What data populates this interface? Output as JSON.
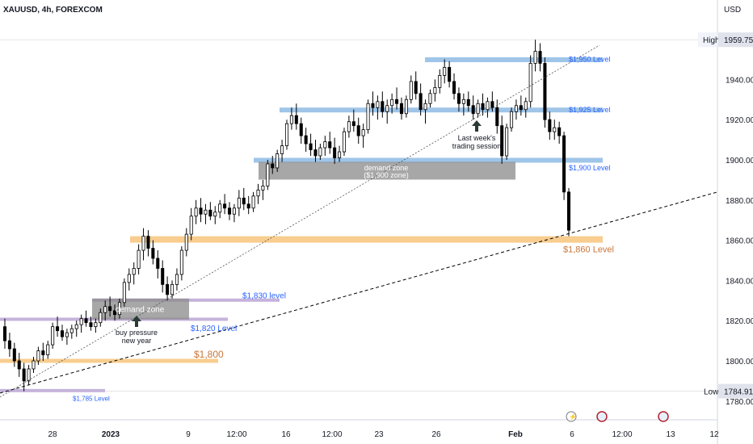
{
  "header": {
    "symbol_line": "XAUUSD, 4h, FOREXCOM",
    "currency": "USD"
  },
  "chart_data": {
    "type": "candlestick",
    "title": "XAUUSD, 4h, FOREXCOM",
    "ylabel": "USD",
    "ylim": [
      1772,
      1972
    ],
    "y_ticks": [
      1780,
      1800,
      1820,
      1840,
      1860,
      1880,
      1900,
      1920,
      1940,
      1960
    ],
    "x_ticks": [
      "28",
      "2023",
      "9",
      "12:00",
      "16",
      "12:00",
      "23",
      "26",
      "Feb",
      "6",
      "12:00",
      "13",
      "12"
    ],
    "high": {
      "label": "High",
      "value": "1959.75"
    },
    "low": {
      "label": "Low",
      "value": "1784.91"
    },
    "candles": [
      [
        1817,
        1821,
        1806,
        1810
      ],
      [
        1810,
        1814,
        1802,
        1806
      ],
      [
        1806,
        1809,
        1797,
        1800
      ],
      [
        1800,
        1804,
        1792,
        1796
      ],
      [
        1796,
        1799,
        1784.91,
        1790
      ],
      [
        1790,
        1798,
        1788,
        1796
      ],
      [
        1796,
        1802,
        1794,
        1800
      ],
      [
        1800,
        1807,
        1798,
        1805
      ],
      [
        1805,
        1809,
        1800,
        1803
      ],
      [
        1803,
        1810,
        1801,
        1808
      ],
      [
        1808,
        1819,
        1806,
        1817
      ],
      [
        1817,
        1822,
        1812,
        1815
      ],
      [
        1815,
        1818,
        1810,
        1812
      ],
      [
        1812,
        1816,
        1808,
        1814
      ],
      [
        1814,
        1818,
        1811,
        1816
      ],
      [
        1816,
        1820,
        1812,
        1818
      ],
      [
        1818,
        1823,
        1814,
        1821
      ],
      [
        1821,
        1825,
        1817,
        1819
      ],
      [
        1819,
        1822,
        1815,
        1817
      ],
      [
        1817,
        1821,
        1814,
        1819
      ],
      [
        1819,
        1826,
        1817,
        1824
      ],
      [
        1824,
        1830,
        1820,
        1827
      ],
      [
        1827,
        1832,
        1822,
        1825
      ],
      [
        1825,
        1828,
        1820,
        1823
      ],
      [
        1823,
        1831,
        1821,
        1829
      ],
      [
        1829,
        1841,
        1827,
        1839
      ],
      [
        1839,
        1846,
        1835,
        1843
      ],
      [
        1843,
        1849,
        1838,
        1846
      ],
      [
        1846,
        1858,
        1843,
        1855
      ],
      [
        1855,
        1866,
        1850,
        1862
      ],
      [
        1862,
        1865,
        1852,
        1856
      ],
      [
        1856,
        1860,
        1848,
        1851
      ],
      [
        1851,
        1855,
        1841,
        1846
      ],
      [
        1846,
        1850,
        1834,
        1838
      ],
      [
        1838,
        1842,
        1830,
        1833
      ],
      [
        1833,
        1840,
        1831,
        1838
      ],
      [
        1838,
        1846,
        1835,
        1843
      ],
      [
        1843,
        1857,
        1840,
        1855
      ],
      [
        1855,
        1866,
        1852,
        1863
      ],
      [
        1863,
        1876,
        1860,
        1872
      ],
      [
        1872,
        1880,
        1868,
        1876
      ],
      [
        1876,
        1881,
        1869,
        1873
      ],
      [
        1873,
        1878,
        1868,
        1875
      ],
      [
        1875,
        1879,
        1870,
        1872
      ],
      [
        1872,
        1877,
        1868,
        1874
      ],
      [
        1874,
        1880,
        1871,
        1878
      ],
      [
        1878,
        1883,
        1873,
        1876
      ],
      [
        1876,
        1879,
        1870,
        1873
      ],
      [
        1873,
        1878,
        1869,
        1876
      ],
      [
        1876,
        1885,
        1872,
        1881
      ],
      [
        1881,
        1886,
        1875,
        1878
      ],
      [
        1878,
        1882,
        1873,
        1876
      ],
      [
        1876,
        1884,
        1874,
        1882
      ],
      [
        1882,
        1888,
        1878,
        1885
      ],
      [
        1885,
        1890,
        1880,
        1887
      ],
      [
        1887,
        1900,
        1885,
        1898
      ],
      [
        1898,
        1902,
        1893,
        1896
      ],
      [
        1896,
        1905,
        1894,
        1903
      ],
      [
        1903,
        1910,
        1899,
        1907
      ],
      [
        1907,
        1920,
        1905,
        1918
      ],
      [
        1918,
        1926,
        1915,
        1922
      ],
      [
        1922,
        1928,
        1915,
        1918
      ],
      [
        1918,
        1921,
        1908,
        1912
      ],
      [
        1912,
        1916,
        1904,
        1908
      ],
      [
        1908,
        1913,
        1902,
        1905
      ],
      [
        1905,
        1910,
        1899,
        1902
      ],
      [
        1902,
        1908,
        1900,
        1906
      ],
      [
        1906,
        1912,
        1902,
        1909
      ],
      [
        1909,
        1914,
        1903,
        1906
      ],
      [
        1906,
        1911,
        1898,
        1901
      ],
      [
        1901,
        1907,
        1899,
        1904
      ],
      [
        1904,
        1916,
        1902,
        1914
      ],
      [
        1914,
        1922,
        1911,
        1919
      ],
      [
        1919,
        1925,
        1914,
        1917
      ],
      [
        1917,
        1921,
        1908,
        1912
      ],
      [
        1912,
        1918,
        1906,
        1915
      ],
      [
        1915,
        1930,
        1913,
        1928
      ],
      [
        1928,
        1934,
        1922,
        1926
      ],
      [
        1926,
        1932,
        1920,
        1929
      ],
      [
        1929,
        1934,
        1921,
        1924
      ],
      [
        1924,
        1930,
        1918,
        1927
      ],
      [
        1927,
        1933,
        1923,
        1930
      ],
      [
        1930,
        1936,
        1925,
        1928
      ],
      [
        1928,
        1931,
        1920,
        1923
      ],
      [
        1923,
        1932,
        1921,
        1930
      ],
      [
        1930,
        1942,
        1928,
        1939
      ],
      [
        1939,
        1944,
        1930,
        1933
      ],
      [
        1933,
        1938,
        1922,
        1925
      ],
      [
        1925,
        1930,
        1918,
        1928
      ],
      [
        1928,
        1935,
        1926,
        1933
      ],
      [
        1933,
        1940,
        1929,
        1936
      ],
      [
        1936,
        1945,
        1933,
        1942
      ],
      [
        1942,
        1950,
        1938,
        1946
      ],
      [
        1946,
        1949,
        1936,
        1939
      ],
      [
        1939,
        1943,
        1930,
        1933
      ],
      [
        1933,
        1936,
        1924,
        1928
      ],
      [
        1928,
        1933,
        1922,
        1930
      ],
      [
        1930,
        1934,
        1924,
        1927
      ],
      [
        1927,
        1932,
        1920,
        1923
      ],
      [
        1923,
        1930,
        1921,
        1928
      ],
      [
        1928,
        1933,
        1922,
        1925
      ],
      [
        1925,
        1931,
        1921,
        1929
      ],
      [
        1929,
        1934,
        1924,
        1926
      ],
      [
        1926,
        1930,
        1913,
        1917
      ],
      [
        1917,
        1922,
        1898,
        1902
      ],
      [
        1902,
        1918,
        1900,
        1916
      ],
      [
        1916,
        1926,
        1914,
        1924
      ],
      [
        1924,
        1930,
        1920,
        1927
      ],
      [
        1927,
        1932,
        1922,
        1925
      ],
      [
        1925,
        1931,
        1921,
        1929
      ],
      [
        1929,
        1952,
        1926,
        1948
      ],
      [
        1948,
        1959.75,
        1944,
        1954
      ],
      [
        1954,
        1958,
        1944,
        1948
      ],
      [
        1948,
        1951,
        1916,
        1920
      ],
      [
        1920,
        1924,
        1910,
        1914
      ],
      [
        1914,
        1920,
        1910,
        1916
      ],
      [
        1916,
        1919,
        1908,
        1912
      ],
      [
        1912,
        1914,
        1880,
        1884
      ],
      [
        1884,
        1886,
        1862,
        1865
      ]
    ],
    "levels": [
      {
        "label": "$1,950 Level",
        "value": 1950
      },
      {
        "label": "$1,925 Level",
        "value": 1925
      },
      {
        "label": "$1,900 Level",
        "value": 1900
      },
      {
        "label": "$1,860 Level",
        "value": 1860
      },
      {
        "label": "$1,830 level",
        "value": 1830
      },
      {
        "label": "$1,820 Level",
        "value": 1820
      },
      {
        "label": "$1,800",
        "value": 1800
      },
      {
        "label": "$1,785 Level",
        "value": 1785
      }
    ],
    "annotations": {
      "demand_zone_top": "demand zone",
      "demand_zone_top_sub": "($1,900 zone)",
      "demand_zone_left": "demand zone",
      "buy_pressure_1": "buy pressure",
      "buy_pressure_2": "new year",
      "last_week_1": "Last week's",
      "last_week_2": "trading session"
    },
    "colors": {
      "up": "#089981",
      "down": "#000000",
      "candle_body": "#ffffff",
      "blue_level": "#9fc5e8",
      "orange_level": "#f8cd8f",
      "purple_level": "#c5b3dc",
      "zone_gray": "#8a8a8a",
      "orange_text": "#c8763a"
    }
  }
}
